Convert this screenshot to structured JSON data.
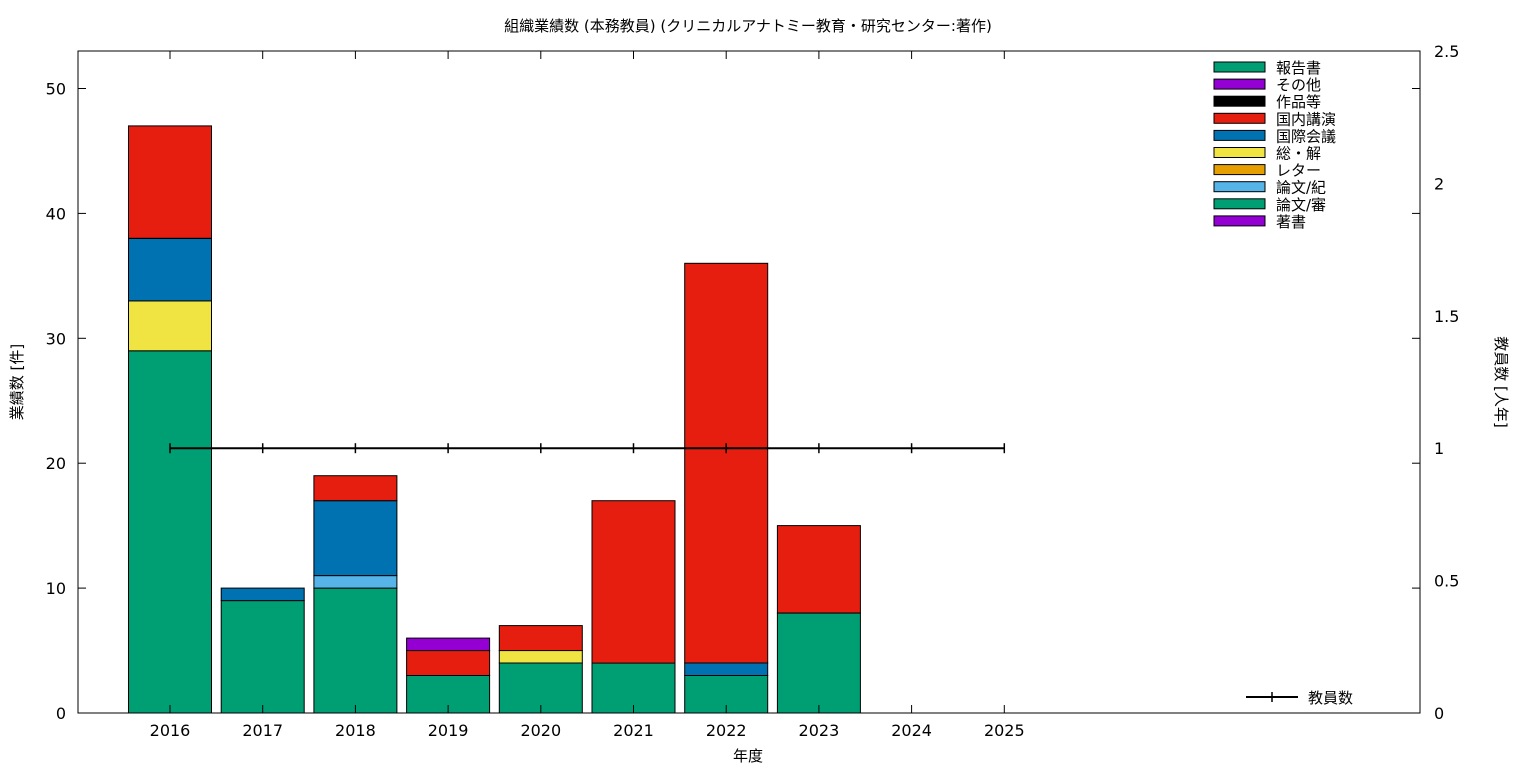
{
  "chart_data": {
    "type": "bar",
    "stacked": true,
    "title": "組織業績数 (本務教員) (クリニカルアナトミー教育・研究センター:著作)",
    "xlabel": "年度",
    "ylabel": "業績数 [件]",
    "y2label": "教員数 [人年]",
    "categories": [
      "2016",
      "2017",
      "2018",
      "2019",
      "2020",
      "2021",
      "2022",
      "2023",
      "2024",
      "2025"
    ],
    "ylim": [
      0,
      53
    ],
    "yticks": [
      0,
      10,
      20,
      30,
      40,
      50
    ],
    "y2lim": [
      0,
      2.5
    ],
    "y2ticks": [
      "0",
      "0.5",
      "1",
      "1.5",
      "2",
      "2.5"
    ],
    "grid": false,
    "legend_position": "top-right",
    "series": [
      {
        "name": "著書",
        "color": "#9400d3",
        "values": [
          0,
          0,
          0,
          0,
          0,
          0,
          0,
          0,
          0,
          0
        ]
      },
      {
        "name": "論文/審",
        "color": "#009e73",
        "values": [
          29,
          9,
          10,
          3,
          4,
          4,
          3,
          8,
          0,
          0
        ]
      },
      {
        "name": "論文/紀",
        "color": "#56b4e9",
        "values": [
          0,
          0,
          1,
          0,
          0,
          0,
          0,
          0,
          0,
          0
        ]
      },
      {
        "name": "レター",
        "color": "#e69f00",
        "values": [
          0,
          0,
          0,
          0,
          0,
          0,
          0,
          0,
          0,
          0
        ]
      },
      {
        "name": "総・解",
        "color": "#f0e442",
        "values": [
          4,
          0,
          0,
          0,
          1,
          0,
          0,
          0,
          0,
          0
        ]
      },
      {
        "name": "国際会議",
        "color": "#0072b2",
        "values": [
          5,
          1,
          6,
          0,
          0,
          0,
          1,
          0,
          0,
          0
        ]
      },
      {
        "name": "国内講演",
        "color": "#e51e10",
        "values": [
          9,
          0,
          2,
          2,
          2,
          13,
          32,
          7,
          0,
          0
        ]
      },
      {
        "name": "作品等",
        "color": "#000000",
        "values": [
          0,
          0,
          0,
          0,
          0,
          0,
          0,
          0,
          0,
          0
        ]
      },
      {
        "name": "その他",
        "color": "#9400d3",
        "values": [
          0,
          0,
          0,
          1,
          0,
          0,
          0,
          0,
          0,
          0
        ]
      },
      {
        "name": "報告書",
        "color": "#009e73",
        "values": [
          0,
          0,
          0,
          0,
          0,
          0,
          0,
          0,
          0,
          0
        ]
      }
    ],
    "line_series": {
      "name": "教員数",
      "axis": "y2",
      "color": "#000000",
      "values": [
        1,
        1,
        1,
        1,
        1,
        1,
        1,
        1,
        1,
        1
      ]
    }
  }
}
